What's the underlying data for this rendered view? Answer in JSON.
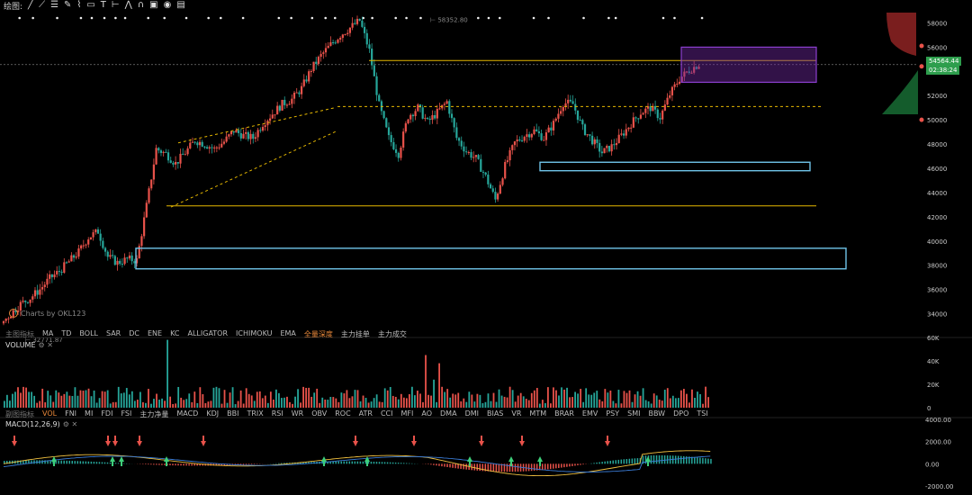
{
  "toolbar": {
    "title": "绘图:",
    "icons": [
      "line-tool-icon",
      "ray-tool-icon",
      "fib-tool-icon",
      "pen-tool-icon",
      "brush-tool-icon",
      "shape-tool-icon",
      "text-tool-icon",
      "measure-tool-icon",
      "pattern-tool-icon",
      "magnet-tool-icon",
      "lock-tool-icon",
      "eye-tool-icon",
      "delete-tool-icon"
    ]
  },
  "colors": {
    "up": "#e8524a",
    "down": "#26a69a",
    "yellow": "#e6b800",
    "blue_box": "#6fc3e8",
    "purple_box": "#8b3fcf",
    "green_tag": "#2e9e4d",
    "dif_line": "#f0c040",
    "dea_line": "#3a7bd5"
  },
  "main_indicators": [
    "主图指标",
    "MA",
    "TD",
    "BOLL",
    "SAR",
    "DC",
    "ENE",
    "KC",
    "ALLIGATOR",
    "ICHIMOKU",
    "EMA",
    "全量深度",
    "主力挂单",
    "主力成交"
  ],
  "sub_indicators": [
    "副图指标",
    "VOL",
    "FNI",
    "MI",
    "FDI",
    "FSI",
    "主力净量",
    "MACD",
    "KDJ",
    "BBI",
    "TRIX",
    "RSI",
    "WR",
    "OBV",
    "ROC",
    "ATR",
    "CCI",
    "MFI",
    "AO",
    "DMA",
    "DMI",
    "BIAS",
    "VR",
    "MTM",
    "BRAR",
    "EMV",
    "PSY",
    "SMI",
    "BBW",
    "DPO",
    "TSI"
  ],
  "credit": "Charts by OKL123",
  "low_label": "32771.87",
  "high_label": "58352.80",
  "last_price": "54564.44",
  "last_price_sub": "02:38:24",
  "volume_label": "VOLUME",
  "macd_label": "MACD(12,26,9)",
  "chart_data": [
    {
      "type": "candlestick",
      "ylim": [
        33000,
        59000
      ],
      "y_ticks": [
        "58000",
        "56000",
        "54000",
        "52000",
        "50000",
        "48000",
        "46000",
        "44000",
        "42000",
        "40000",
        "38000",
        "36000",
        "34000"
      ],
      "close_path": [
        33200,
        34000,
        34800,
        35300,
        36000,
        36900,
        37500,
        38300,
        39100,
        40300,
        40800,
        38700,
        38200,
        38500,
        38400,
        42900,
        47600,
        47200,
        46400,
        47300,
        48300,
        48000,
        47600,
        48200,
        49100,
        48700,
        48500,
        49700,
        50500,
        51300,
        51700,
        52600,
        54200,
        55300,
        56200,
        57000,
        57600,
        58200,
        55700,
        51200,
        48500,
        47200,
        50300,
        51000,
        49800,
        50600,
        51500,
        48500,
        47400,
        46800,
        45300,
        43400,
        46200,
        48100,
        48700,
        49100,
        48500,
        49700,
        51400,
        51300,
        49300,
        48300,
        47300,
        47800,
        48700,
        49700,
        50600,
        51000,
        50200,
        52100,
        53400,
        54100,
        54600
      ],
      "annotations": {
        "high": 58352.8,
        "low": 32771.87,
        "last": 54564.44
      }
    },
    {
      "type": "bar",
      "title": "VOLUME",
      "ylim": [
        0,
        60000
      ],
      "y_ticks": [
        "60K",
        "40K",
        "20K",
        "0"
      ],
      "peaks": [
        58000,
        45000
      ]
    },
    {
      "type": "line",
      "title": "MACD(12,26,9)",
      "ylim": [
        -2000,
        4000
      ],
      "y_ticks": [
        "4000.00",
        "2000.00",
        "0.00",
        "-2000.00"
      ]
    }
  ]
}
